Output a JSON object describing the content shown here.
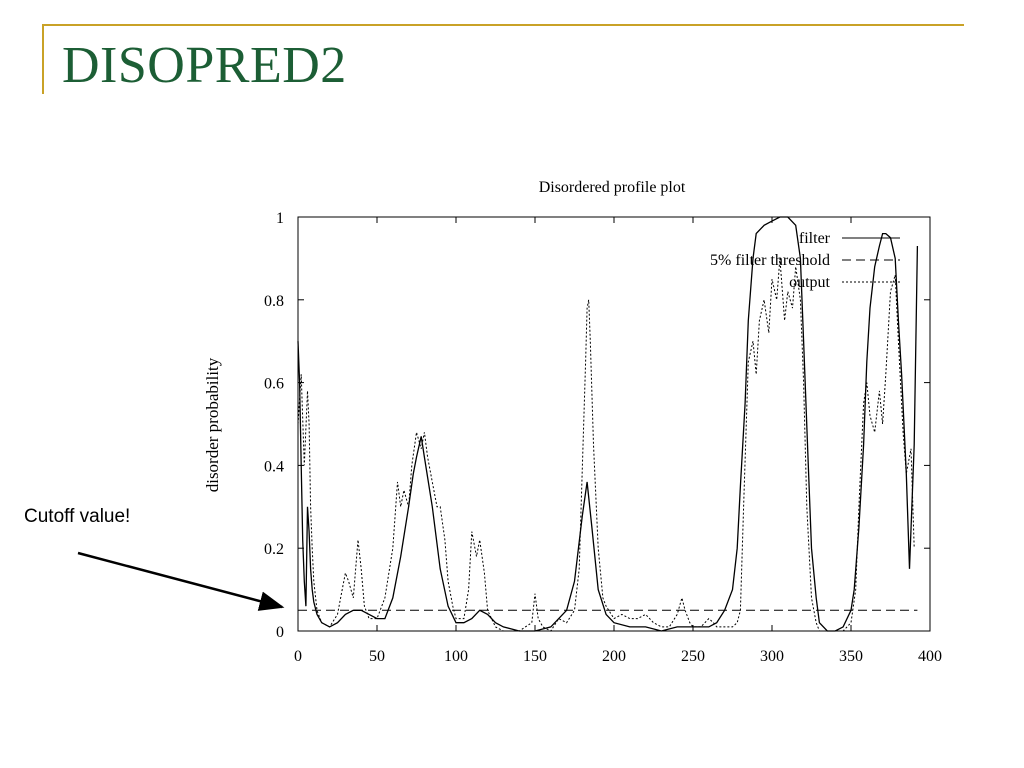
{
  "slide": {
    "title": "DISOPRED2",
    "annotation": "Cutoff value!",
    "accent_color": "#c9a227",
    "title_color": "#1c5e35"
  },
  "chart_data": {
    "type": "line",
    "title": "Disordered profile plot",
    "xlabel": "",
    "ylabel": "disorder probability",
    "xlim": [
      0,
      400
    ],
    "ylim": [
      0,
      1
    ],
    "xticks": [
      0,
      50,
      100,
      150,
      200,
      250,
      300,
      350,
      400
    ],
    "yticks": [
      0,
      0.2,
      0.4,
      0.6,
      0.8,
      1
    ],
    "ytick_labels": [
      "0",
      "0.2",
      "0.4",
      "0.6",
      "0.8",
      "1"
    ],
    "legend_position": "top-right",
    "grid": false,
    "series": [
      {
        "name": "filter",
        "style": "solid",
        "x": [
          0,
          1,
          2,
          3,
          4,
          5,
          6,
          7,
          8,
          9,
          10,
          12,
          15,
          20,
          25,
          30,
          35,
          40,
          45,
          50,
          55,
          60,
          65,
          70,
          73,
          75,
          78,
          80,
          85,
          90,
          95,
          100,
          105,
          110,
          115,
          120,
          125,
          130,
          140,
          150,
          160,
          170,
          175,
          180,
          183,
          186,
          190,
          195,
          200,
          210,
          220,
          230,
          240,
          250,
          260,
          265,
          270,
          275,
          278,
          280,
          283,
          285,
          288,
          290,
          295,
          300,
          305,
          310,
          315,
          318,
          320,
          323,
          325,
          328,
          330,
          335,
          340,
          345,
          350,
          352,
          355,
          358,
          360,
          362,
          365,
          368,
          370,
          372,
          375,
          378,
          380,
          382,
          385,
          387,
          390,
          392
        ],
        "y": [
          0.7,
          0.6,
          0.4,
          0.22,
          0.12,
          0.06,
          0.3,
          0.24,
          0.15,
          0.1,
          0.07,
          0.04,
          0.02,
          0.01,
          0.02,
          0.04,
          0.05,
          0.05,
          0.04,
          0.03,
          0.03,
          0.08,
          0.18,
          0.3,
          0.38,
          0.42,
          0.47,
          0.42,
          0.3,
          0.15,
          0.06,
          0.02,
          0.02,
          0.03,
          0.05,
          0.04,
          0.02,
          0.01,
          0.0,
          0.0,
          0.01,
          0.05,
          0.12,
          0.28,
          0.36,
          0.25,
          0.1,
          0.04,
          0.02,
          0.01,
          0.01,
          0.0,
          0.01,
          0.01,
          0.01,
          0.02,
          0.05,
          0.1,
          0.2,
          0.35,
          0.55,
          0.75,
          0.9,
          0.96,
          0.98,
          0.99,
          1.0,
          1.0,
          0.98,
          0.9,
          0.7,
          0.4,
          0.2,
          0.08,
          0.02,
          0.0,
          0.0,
          0.01,
          0.05,
          0.1,
          0.25,
          0.45,
          0.65,
          0.78,
          0.88,
          0.93,
          0.96,
          0.96,
          0.95,
          0.9,
          0.75,
          0.62,
          0.38,
          0.15,
          0.45,
          0.93
        ]
      },
      {
        "name": "5% filter threshold",
        "style": "dashed",
        "x": [
          0,
          392
        ],
        "y": [
          0.05,
          0.05
        ]
      },
      {
        "name": "output",
        "style": "dotted",
        "x": [
          0,
          2,
          4,
          6,
          7,
          8,
          9,
          10,
          12,
          15,
          20,
          25,
          28,
          30,
          32,
          35,
          38,
          40,
          42,
          45,
          50,
          55,
          60,
          63,
          65,
          67,
          70,
          72,
          75,
          78,
          80,
          82,
          85,
          88,
          90,
          93,
          95,
          98,
          100,
          105,
          108,
          110,
          113,
          115,
          118,
          120,
          125,
          130,
          140,
          148,
          150,
          152,
          155,
          160,
          165,
          170,
          175,
          178,
          180,
          182,
          183,
          184,
          185,
          187,
          190,
          193,
          195,
          200,
          205,
          210,
          215,
          220,
          225,
          230,
          235,
          240,
          243,
          245,
          248,
          250,
          255,
          260,
          263,
          265,
          270,
          275,
          278,
          280,
          282,
          285,
          288,
          290,
          292,
          295,
          298,
          300,
          303,
          305,
          308,
          310,
          313,
          315,
          318,
          320,
          322,
          325,
          328,
          330,
          335,
          340,
          345,
          350,
          353,
          355,
          358,
          360,
          362,
          365,
          368,
          370,
          372,
          375,
          378,
          380,
          383,
          385,
          388,
          390
        ],
        "y": [
          0.5,
          0.62,
          0.4,
          0.58,
          0.5,
          0.3,
          0.2,
          0.12,
          0.05,
          0.02,
          0.01,
          0.04,
          0.1,
          0.14,
          0.12,
          0.08,
          0.22,
          0.15,
          0.06,
          0.03,
          0.03,
          0.08,
          0.2,
          0.36,
          0.3,
          0.34,
          0.3,
          0.4,
          0.48,
          0.44,
          0.48,
          0.42,
          0.36,
          0.3,
          0.3,
          0.22,
          0.12,
          0.06,
          0.03,
          0.03,
          0.1,
          0.24,
          0.18,
          0.22,
          0.14,
          0.05,
          0.01,
          0.0,
          0.0,
          0.02,
          0.09,
          0.03,
          0.01,
          0.0,
          0.03,
          0.02,
          0.05,
          0.15,
          0.4,
          0.65,
          0.78,
          0.8,
          0.7,
          0.45,
          0.2,
          0.08,
          0.06,
          0.03,
          0.04,
          0.03,
          0.03,
          0.04,
          0.02,
          0.01,
          0.01,
          0.04,
          0.08,
          0.05,
          0.02,
          0.01,
          0.01,
          0.03,
          0.02,
          0.01,
          0.01,
          0.01,
          0.02,
          0.05,
          0.3,
          0.65,
          0.7,
          0.62,
          0.75,
          0.8,
          0.72,
          0.85,
          0.8,
          0.9,
          0.75,
          0.82,
          0.78,
          0.88,
          0.8,
          0.6,
          0.3,
          0.08,
          0.02,
          0.0,
          0.0,
          0.0,
          0.0,
          0.02,
          0.1,
          0.3,
          0.55,
          0.6,
          0.52,
          0.48,
          0.58,
          0.5,
          0.62,
          0.82,
          0.86,
          0.7,
          0.48,
          0.38,
          0.44,
          0.2
        ]
      }
    ]
  }
}
